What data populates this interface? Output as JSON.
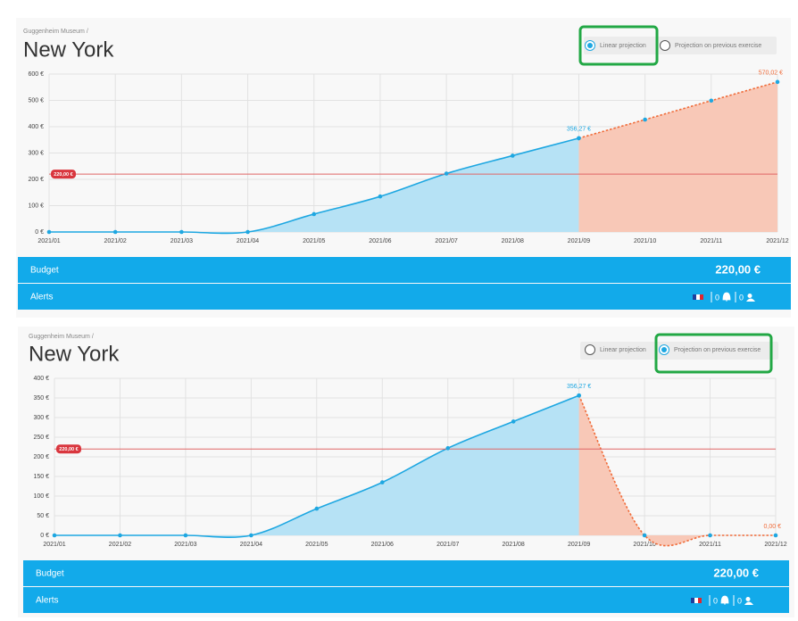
{
  "panels": [
    {
      "breadcrumb": "Guggenheim Museum /",
      "title": "New York",
      "options": [
        "Linear projection",
        "Projection on previous exercise"
      ],
      "selected": 0,
      "budget_label": "Budget",
      "budget_value": "220,00 €",
      "alerts_label": "Alerts",
      "alert_counts": [
        0,
        0
      ]
    },
    {
      "breadcrumb": "Guggenheim Museum /",
      "title": "New York",
      "options": [
        "Linear projection",
        "Projection on previous exercise"
      ],
      "selected": 1,
      "budget_label": "Budget",
      "budget_value": "220,00 €",
      "alerts_label": "Alerts",
      "alert_counts": [
        0,
        0
      ]
    }
  ],
  "chart_data": [
    {
      "type": "line",
      "categories": [
        "2021/01",
        "2021/02",
        "2021/03",
        "2021/04",
        "2021/05",
        "2021/06",
        "2021/07",
        "2021/08",
        "2021/09",
        "2021/10",
        "2021/11",
        "2021/12"
      ],
      "series": [
        {
          "color": "#1ea7e1",
          "fill": "#b6e2f5",
          "dashed": false,
          "values": [
            0,
            0,
            0,
            0,
            68,
            135,
            222,
            290,
            356.27,
            null,
            null,
            null
          ],
          "value_labels": [
            null,
            null,
            null,
            null,
            null,
            null,
            null,
            null,
            "356,27 €",
            null,
            null,
            null
          ]
        },
        {
          "color": "#f06c3a",
          "fill": "#f8c8b7",
          "dashed": true,
          "values": [
            null,
            null,
            null,
            null,
            null,
            null,
            null,
            null,
            356.27,
            427,
            499,
            570.02
          ],
          "value_labels": [
            null,
            null,
            null,
            null,
            null,
            null,
            null,
            null,
            null,
            null,
            null,
            "570,02 €"
          ]
        }
      ],
      "budget": {
        "value": 220,
        "label": "220,00 €",
        "color": "#e06666"
      },
      "ylim": [
        0,
        600
      ],
      "yticks": [
        {
          "value": 0,
          "label": "0 €"
        },
        {
          "value": 100,
          "label": "100 €"
        },
        {
          "value": 200,
          "label": "200 €"
        },
        {
          "value": 300,
          "label": "300 €"
        },
        {
          "value": 400,
          "label": "400 €"
        },
        {
          "value": 500,
          "label": "500 €"
        },
        {
          "value": 600,
          "label": "600 €"
        }
      ],
      "grid": true
    },
    {
      "type": "line",
      "categories": [
        "2021/01",
        "2021/02",
        "2021/03",
        "2021/04",
        "2021/05",
        "2021/06",
        "2021/07",
        "2021/08",
        "2021/09",
        "2021/10",
        "2021/11",
        "2021/12"
      ],
      "series": [
        {
          "color": "#1ea7e1",
          "fill": "#b6e2f5",
          "dashed": false,
          "values": [
            0,
            0,
            0,
            0,
            68,
            135,
            222,
            290,
            356.27,
            null,
            null,
            null
          ],
          "value_labels": [
            null,
            null,
            null,
            null,
            null,
            null,
            null,
            null,
            "356,27 €",
            null,
            null,
            null
          ]
        },
        {
          "color": "#f06c3a",
          "fill": "#f8c8b7",
          "dashed": true,
          "values": [
            null,
            null,
            null,
            null,
            null,
            null,
            null,
            null,
            356.27,
            0,
            0,
            0
          ],
          "value_labels": [
            null,
            null,
            null,
            null,
            null,
            null,
            null,
            null,
            null,
            null,
            null,
            "0,00 €"
          ]
        }
      ],
      "budget": {
        "value": 220,
        "label": "220,00 €",
        "color": "#e06666"
      },
      "ylim": [
        0,
        400
      ],
      "yticks": [
        {
          "value": 0,
          "label": "0 €"
        },
        {
          "value": 50,
          "label": "50 €"
        },
        {
          "value": 100,
          "label": "100 €"
        },
        {
          "value": 150,
          "label": "150 €"
        },
        {
          "value": 200,
          "label": "200 €"
        },
        {
          "value": 250,
          "label": "250 €"
        },
        {
          "value": 300,
          "label": "300 €"
        },
        {
          "value": 350,
          "label": "350 €"
        },
        {
          "value": 400,
          "label": "400 €"
        }
      ],
      "grid": true
    }
  ]
}
